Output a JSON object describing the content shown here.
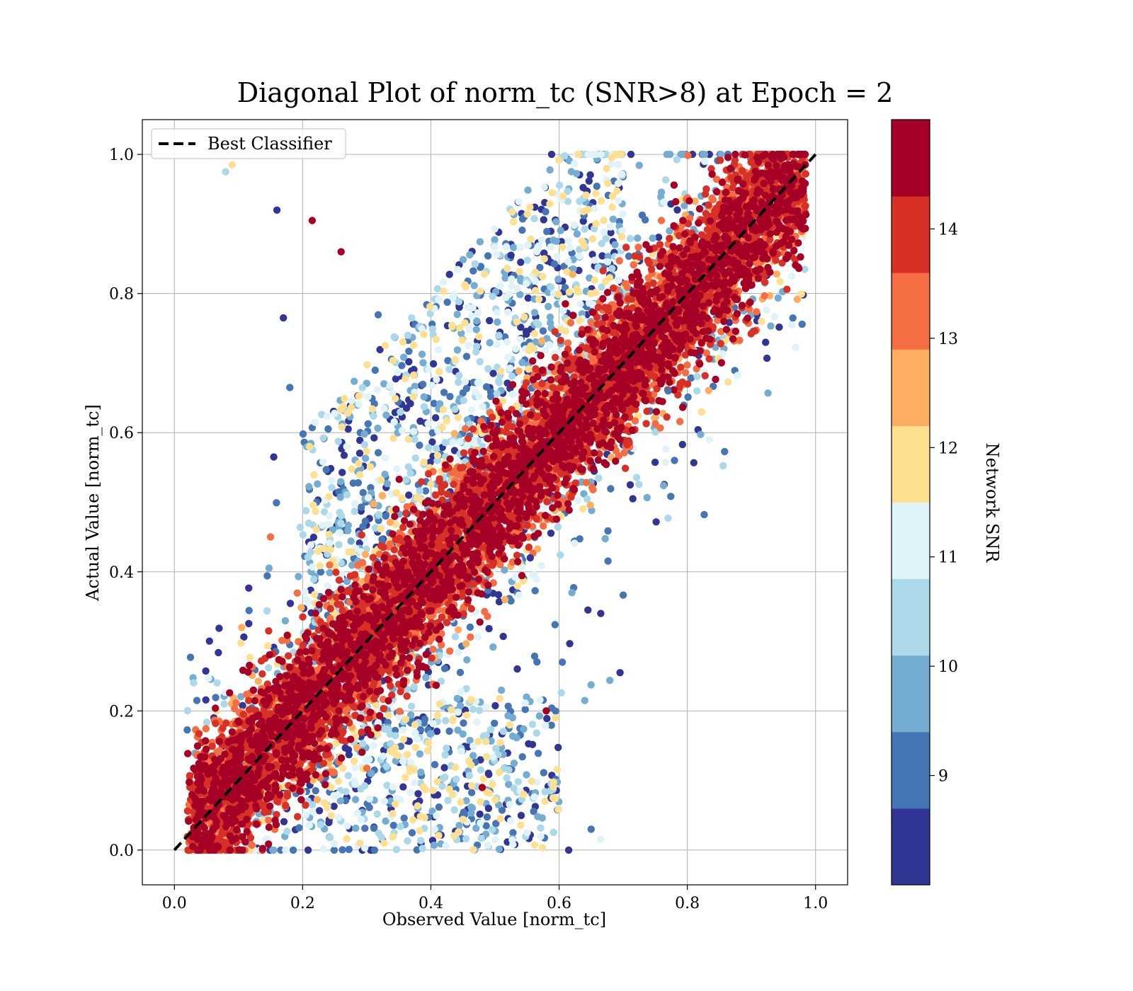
{
  "chart_data": {
    "type": "scatter",
    "title": "Diagonal Plot of norm_tc (SNR>8) at Epoch = 2",
    "xlabel": "Observed Value [norm_tc]",
    "ylabel": "Actual Value [norm_tc]",
    "xlim": [
      -0.05,
      1.05
    ],
    "ylim": [
      -0.05,
      1.05
    ],
    "xticks": [
      "0.0",
      "0.2",
      "0.4",
      "0.6",
      "0.8",
      "1.0"
    ],
    "yticks": [
      "0.0",
      "0.2",
      "0.4",
      "0.6",
      "0.8",
      "1.0"
    ],
    "grid": true,
    "legend": {
      "position": "upper-left",
      "entries": [
        "Best Classifier"
      ]
    },
    "reference_line": {
      "name": "Best Classifier",
      "style": "dashed",
      "color": "#000000",
      "x": [
        0,
        1
      ],
      "y": [
        0,
        1
      ]
    },
    "colorbar": {
      "label": "Network SNR",
      "range": [
        8,
        15
      ],
      "ticks": [
        "9",
        "10",
        "11",
        "12",
        "13",
        "14"
      ],
      "colormap": "RdYlBu_r",
      "colors": [
        "#313695",
        "#4575b4",
        "#74add1",
        "#abd9e9",
        "#e0f3f8",
        "#fee090",
        "#fdae61",
        "#f46d43",
        "#d73027",
        "#a50026"
      ]
    },
    "point_distribution": "dense band of high-SNR points along y = x; low-SNR points scattered far from the diagonal, especially above it at x 0.3-0.7 and below it at x 0.3-0.6 near y 0-0.2",
    "sample_points": [
      {
        "x": 0.08,
        "y": 0.975,
        "snr": 10.6
      },
      {
        "x": 0.09,
        "y": 0.985,
        "snr": 11.8
      },
      {
        "x": 0.16,
        "y": 0.92,
        "snr": 8.2
      },
      {
        "x": 0.17,
        "y": 0.765,
        "snr": 8.3
      },
      {
        "x": 0.18,
        "y": 0.665,
        "snr": 9.3
      },
      {
        "x": 0.155,
        "y": 0.565,
        "snr": 8.2
      },
      {
        "x": 0.215,
        "y": 0.905,
        "snr": 14.6
      },
      {
        "x": 0.26,
        "y": 0.86,
        "snr": 14.5
      },
      {
        "x": 0.37,
        "y": 0.765,
        "snr": 10.2
      },
      {
        "x": 0.15,
        "y": 0.45,
        "snr": 13.2
      },
      {
        "x": 0.035,
        "y": 0.215,
        "snr": 9.1
      },
      {
        "x": 0.105,
        "y": 0.32,
        "snr": 12.3
      },
      {
        "x": 0.58,
        "y": 0.2,
        "snr": 14.6
      },
      {
        "x": 0.605,
        "y": 0.27,
        "snr": 9.3
      },
      {
        "x": 0.62,
        "y": 0.37,
        "snr": 9.6
      },
      {
        "x": 0.645,
        "y": 0.345,
        "snr": 8.2
      },
      {
        "x": 0.665,
        "y": 0.34,
        "snr": 8.2
      },
      {
        "x": 0.695,
        "y": 0.255,
        "snr": 8.2
      },
      {
        "x": 0.64,
        "y": 0.215,
        "snr": 9.9
      },
      {
        "x": 0.615,
        "y": 0.0,
        "snr": 8.2
      },
      {
        "x": 0.65,
        "y": 0.03,
        "snr": 9.3
      },
      {
        "x": 0.665,
        "y": 0.015,
        "snr": 11.2
      },
      {
        "x": 0.715,
        "y": 0.505,
        "snr": 8.2
      },
      {
        "x": 0.78,
        "y": 0.56,
        "snr": 9.3
      },
      {
        "x": 0.77,
        "y": 0.66,
        "snr": 9.3
      },
      {
        "x": 0.815,
        "y": 0.66,
        "snr": 10.2
      },
      {
        "x": 0.525,
        "y": 0.855,
        "snr": 8.4
      },
      {
        "x": 0.555,
        "y": 0.42,
        "snr": 8.3
      },
      {
        "x": 0.48,
        "y": 0.09,
        "snr": 14.6
      },
      {
        "x": 0.49,
        "y": 0.06,
        "snr": 8.3
      }
    ]
  }
}
